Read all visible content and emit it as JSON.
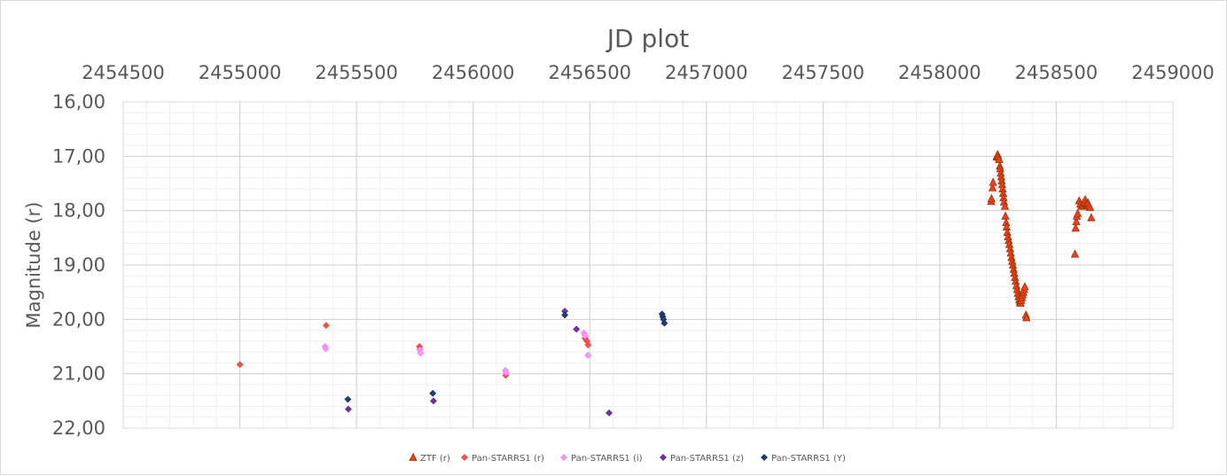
{
  "chart_data": {
    "type": "scatter",
    "title": "JD plot",
    "xlabel": "",
    "ylabel": "Magnitude (r)",
    "xlim": [
      2454500,
      2459000
    ],
    "ylim": [
      16,
      22
    ],
    "y_reversed": true,
    "x_axis_position": "top",
    "x_ticks": [
      "2454500",
      "2455000",
      "2455500",
      "2456000",
      "2456500",
      "2457000",
      "2457500",
      "2458000",
      "2458500",
      "2459000"
    ],
    "y_ticks": [
      "16,00",
      "17,00",
      "18,00",
      "19,00",
      "20,00",
      "21,00",
      "22,00"
    ],
    "grid": true,
    "legend_position": "bottom",
    "series": [
      {
        "name": "ZTF (r)",
        "marker": "triangle",
        "color": "#ff3b1f",
        "edge": "#8b3a00",
        "x": [
          2458221,
          2458222,
          2458227,
          2458229,
          2458244,
          2458246,
          2458249,
          2458252,
          2458255,
          2458258,
          2458260,
          2458262,
          2458264,
          2458266,
          2458268,
          2458270,
          2458272,
          2458274,
          2458276,
          2458280,
          2458282,
          2458285,
          2458287,
          2458290,
          2458293,
          2458296,
          2458299,
          2458302,
          2458305,
          2458308,
          2458311,
          2458314,
          2458317,
          2458320,
          2458323,
          2458326,
          2458329,
          2458332,
          2458335,
          2458338,
          2458341,
          2458344,
          2458347,
          2458350,
          2458353,
          2458356,
          2458359,
          2458362,
          2458365,
          2458370,
          2458372,
          2458580,
          2458583,
          2458586,
          2458588,
          2458592,
          2458598,
          2458603,
          2458608,
          2458612,
          2458616,
          2458620,
          2458624,
          2458628,
          2458632,
          2458636,
          2458640,
          2458645,
          2458650
        ],
        "y": [
          17.83,
          17.78,
          17.58,
          17.48,
          17.01,
          16.99,
          16.97,
          17.02,
          17.06,
          17.18,
          17.23,
          17.31,
          17.38,
          17.45,
          17.52,
          17.6,
          17.68,
          17.76,
          17.84,
          17.92,
          18.1,
          18.22,
          18.3,
          18.4,
          18.48,
          18.55,
          18.62,
          18.7,
          18.78,
          18.86,
          18.93,
          19.0,
          19.08,
          19.15,
          19.23,
          19.3,
          19.38,
          19.45,
          19.52,
          19.58,
          19.64,
          19.68,
          19.7,
          19.65,
          19.6,
          19.55,
          19.5,
          19.45,
          19.4,
          19.92,
          19.97,
          18.8,
          18.32,
          18.2,
          18.1,
          18.05,
          17.82,
          17.88,
          17.92,
          17.9,
          17.86,
          17.84,
          17.8,
          17.88,
          17.92,
          17.86,
          17.9,
          17.94,
          18.13
        ]
      },
      {
        "name": "Pan-STARRS1 (r)",
        "marker": "diamond",
        "color": "#ff5050",
        "edge": "#e04040",
        "x": [
          2455000,
          2455370,
          2455770,
          2455772,
          2456140,
          2456480,
          2456488,
          2456493
        ],
        "y": [
          20.83,
          20.11,
          20.5,
          20.55,
          21.03,
          20.35,
          20.4,
          20.47
        ]
      },
      {
        "name": "Pan-STARRS1 (i)",
        "marker": "diamond",
        "color": "#ff99ff",
        "edge": "#ee77ee",
        "x": [
          2455365,
          2455368,
          2455772,
          2455775,
          2456138,
          2456142,
          2456475,
          2456480,
          2456492
        ],
        "y": [
          20.5,
          20.54,
          20.56,
          20.62,
          20.94,
          20.98,
          20.25,
          20.3,
          20.66
        ]
      },
      {
        "name": "Pan-STARRS1 (z)",
        "marker": "diamond",
        "color": "#7030a0",
        "edge": "#5a1f8c",
        "x": [
          2455465,
          2455830,
          2456393,
          2456443,
          2456583
        ],
        "y": [
          21.65,
          21.5,
          19.85,
          20.18,
          21.72
        ]
      },
      {
        "name": "Pan-STARRS1 (Y)",
        "marker": "diamond",
        "color": "#1f3f7a",
        "edge": "#0f2a5c",
        "x": [
          2455463,
          2455827,
          2456393,
          2456810,
          2456813,
          2456816,
          2456820
        ],
        "y": [
          21.47,
          21.36,
          19.92,
          19.9,
          19.95,
          20.0,
          20.07
        ]
      }
    ]
  }
}
